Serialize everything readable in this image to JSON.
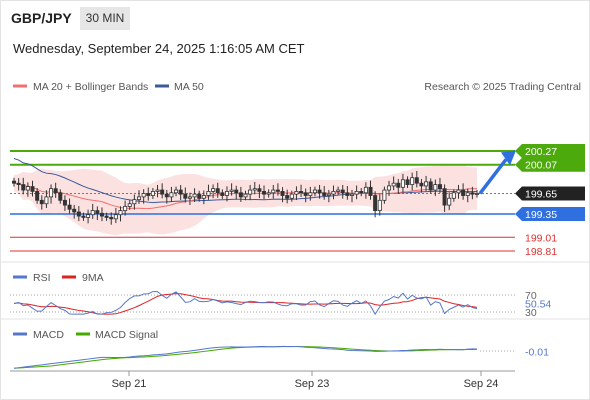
{
  "header": {
    "symbol": "GBP/JPY",
    "interval": "30 MIN",
    "datetime": "Wednesday, September 24, 2025 1:16:05 AM CET"
  },
  "legend": {
    "ma20_label": "MA 20 + Bollinger Bands",
    "ma50_label": "MA 50",
    "copyright": "Research © 2025 Trading Central"
  },
  "colors": {
    "ma20": "#f07070",
    "ma50": "#3a5a9a",
    "bollinger": "#fbd9d9",
    "green": "#4caa0c",
    "blue": "#2f6fe0",
    "red": "#e03030",
    "candle": "#333333",
    "last": "#222222",
    "rsi": "#5577cc",
    "rsi_ma": "#dd2222",
    "macd": "#5577cc",
    "macd_signal": "#44aa00"
  },
  "chart_data": {
    "type": "candlestick",
    "x_labels": [
      "Sep 21",
      "Sep 23",
      "Sep 24"
    ],
    "price_levels": [
      {
        "value": 200.27,
        "label": "200.27",
        "type": "resistance"
      },
      {
        "value": 200.07,
        "label": "200.07",
        "type": "resistance"
      },
      {
        "value": 199.65,
        "label": "199.65",
        "type": "last"
      },
      {
        "value": 199.35,
        "label": "199.35",
        "type": "pivot"
      },
      {
        "value": 199.01,
        "label": "199.01",
        "type": "support"
      },
      {
        "value": 198.81,
        "label": "198.81",
        "type": "support"
      }
    ],
    "closes": [
      199.8,
      199.78,
      199.7,
      199.75,
      199.68,
      199.55,
      199.5,
      199.6,
      199.72,
      199.66,
      199.55,
      199.48,
      199.42,
      199.38,
      199.32,
      199.3,
      199.34,
      199.4,
      199.36,
      199.32,
      199.3,
      199.28,
      199.34,
      199.4,
      199.46,
      199.5,
      199.56,
      199.6,
      199.65,
      199.62,
      199.68,
      199.7,
      199.64,
      199.6,
      199.66,
      199.7,
      199.64,
      199.58,
      199.6,
      199.64,
      199.58,
      199.62,
      199.68,
      199.72,
      199.66,
      199.62,
      199.68,
      199.7,
      199.66,
      199.6,
      199.64,
      199.7,
      199.72,
      199.68,
      199.64,
      199.66,
      199.7,
      199.68,
      199.62,
      199.58,
      199.64,
      199.68,
      199.66,
      199.62,
      199.66,
      199.7,
      199.66,
      199.62,
      199.64,
      199.68,
      199.7,
      199.66,
      199.62,
      199.64,
      199.68,
      199.66,
      199.74,
      199.62,
      199.4,
      199.55,
      199.7,
      199.76,
      199.8,
      199.74,
      199.85,
      199.78,
      199.88,
      199.8,
      199.76,
      199.82,
      199.7,
      199.78,
      199.72,
      199.48,
      199.58,
      199.66,
      199.7,
      199.62,
      199.66,
      199.64,
      199.65
    ],
    "forecast": {
      "from": 199.65,
      "to": 200.22
    },
    "rsi": {
      "label": "RSI",
      "ma_label": "9MA",
      "value": "50.54",
      "levels": [
        70,
        30
      ]
    },
    "macd": {
      "label": "MACD",
      "signal_label": "MACD Signal",
      "value": "-0.01"
    }
  }
}
